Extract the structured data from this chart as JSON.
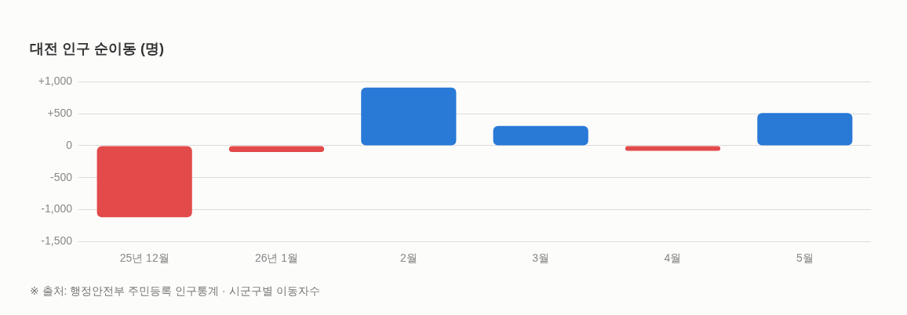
{
  "chart_data": {
    "type": "bar",
    "title": "대전 인구 순이동 (명)",
    "categories": [
      "25년 12월",
      "26년 1월",
      "2월",
      "3월",
      "4월",
      "5월"
    ],
    "values": [
      -1120,
      -100,
      910,
      310,
      -80,
      510
    ],
    "colors": [
      "#e34a4a",
      "#e34a4a",
      "#2979d6",
      "#2979d6",
      "#e34a4a",
      "#2979d6"
    ],
    "ylim": [
      -1500,
      1000
    ],
    "yticks": [
      {
        "value": -1500,
        "label": "-1,500"
      },
      {
        "value": -1000,
        "label": "-1,000"
      },
      {
        "value": -500,
        "label": "-500"
      },
      0,
      {
        "value": 500,
        "label": "+500"
      },
      {
        "value": 1000,
        "label": "+1,000"
      }
    ],
    "grid": "y",
    "legend": false,
    "annotations": [
      "※ 출처: 행정안전부 주민등록 인구통계 · 시군구별 이동자수"
    ]
  }
}
